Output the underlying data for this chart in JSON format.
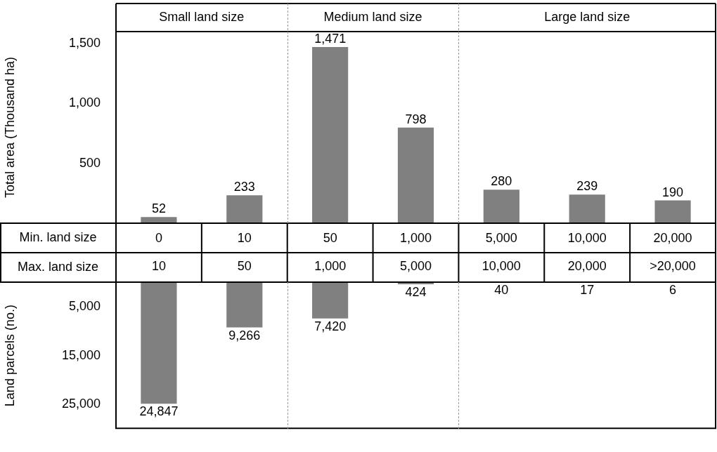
{
  "chart_data": [
    {
      "type": "bar",
      "ylabel": "Total area (Thousand ha)",
      "xlabel": "Min. land size",
      "categories": [
        "0",
        "10",
        "50",
        "1,000",
        "5,000",
        "10,000",
        "20,000"
      ],
      "values": [
        52,
        233,
        1471,
        798,
        280,
        239,
        190
      ],
      "color": "#808080",
      "ylim": [
        0,
        1600
      ],
      "yticks": [
        {
          "value": 500,
          "label": "500"
        },
        {
          "value": 1000,
          "label": "1,000"
        },
        {
          "value": 1500,
          "label": "1,500"
        }
      ],
      "grid": false,
      "value_labels": [
        "52",
        "233",
        "1,471",
        "798",
        "280",
        "239",
        "190"
      ],
      "annotations": [
        "Small land size",
        "Medium land size",
        "Large land size"
      ]
    },
    {
      "type": "bar",
      "ylabel": "Land parcels (no.)",
      "xlabel": "Max. land size",
      "categories": [
        "10",
        "50",
        "1,000",
        "5,000",
        "10,000",
        "20,000",
        ">20,000"
      ],
      "values": [
        24847,
        9266,
        7420,
        424,
        40,
        17,
        6
      ],
      "color": "#808080",
      "ylim": [
        30000,
        0
      ],
      "yticks": [
        {
          "value": 5000,
          "label": "5,000"
        },
        {
          "value": 15000,
          "label": "15,000"
        },
        {
          "value": 25000,
          "label": "25,000"
        }
      ],
      "grid": false,
      "value_labels": [
        "24,847",
        "9,266",
        "7,420",
        "424",
        "40",
        "17",
        "6"
      ]
    }
  ]
}
